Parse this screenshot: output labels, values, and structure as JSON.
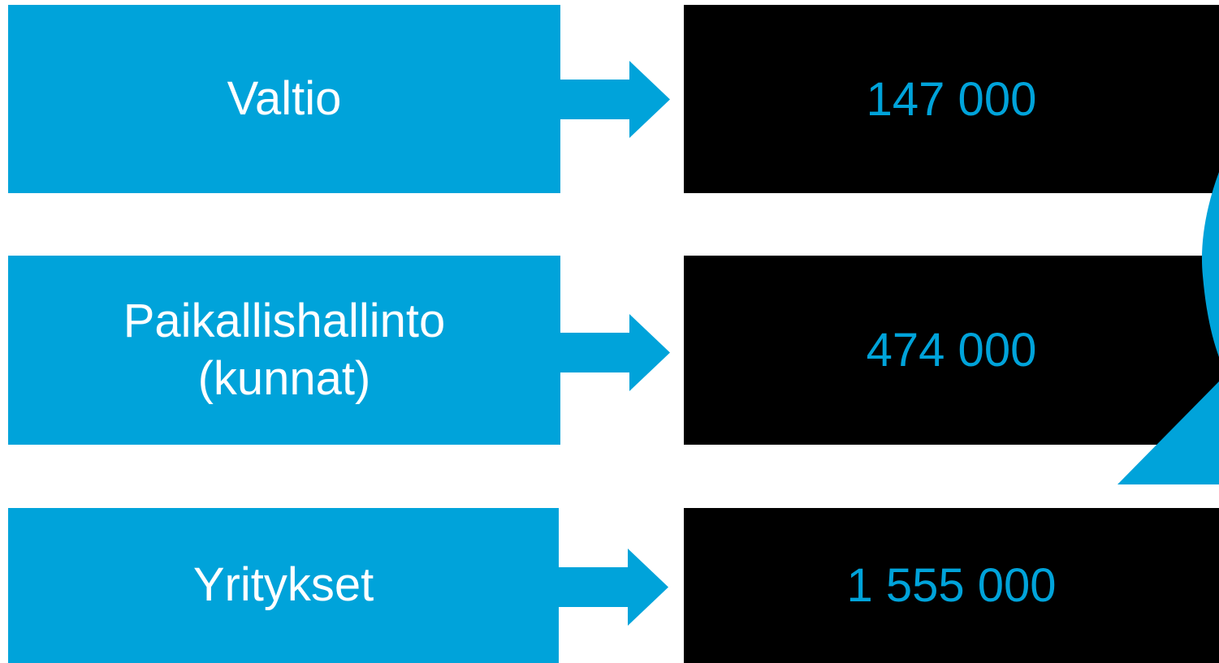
{
  "colors": {
    "accent": "#00a3da",
    "value_background": "#000000",
    "label_text": "#ffffff"
  },
  "rows": [
    {
      "label_lines": [
        "Valtio"
      ],
      "value": "147 000"
    },
    {
      "label_lines": [
        "Paikallishallinto",
        "(kunnat)"
      ],
      "value": "474 000"
    },
    {
      "label_lines": [
        "Yritykset"
      ],
      "value": "1 555 000"
    }
  ]
}
